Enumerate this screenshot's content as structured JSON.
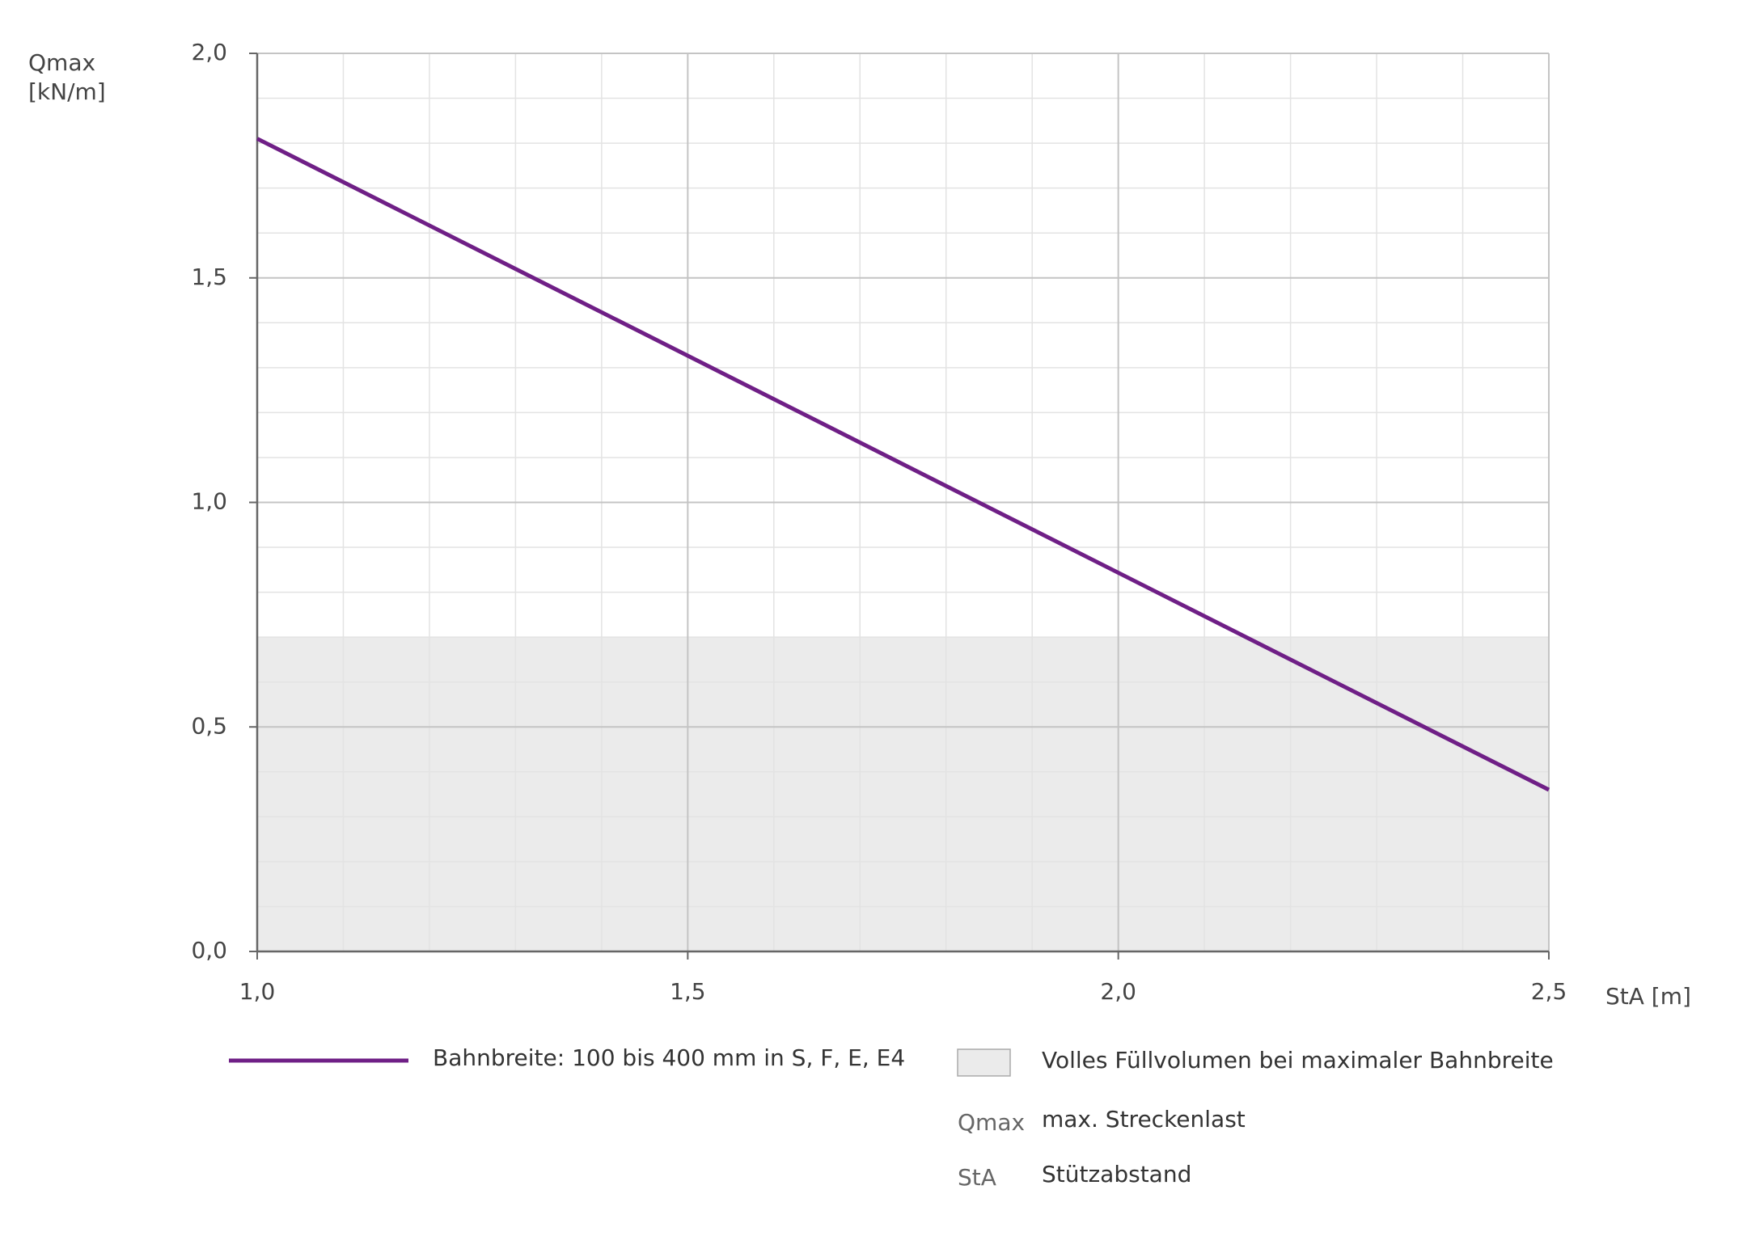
{
  "chart_data": {
    "type": "line",
    "ylabel": [
      "Qmax",
      "[kN/m]"
    ],
    "xlabel": "StA [m]",
    "x": [
      1.0,
      2.5
    ],
    "series": [
      {
        "name": "Bahnbreite: 100 bis 400 mm in S, F, E, E4",
        "color": "#6f1f86",
        "values": [
          1.81,
          0.36
        ]
      }
    ],
    "xlim": [
      1.0,
      2.5
    ],
    "xticks": [
      {
        "value": 1.0,
        "label": "1,0"
      },
      {
        "value": 1.5,
        "label": "1,5"
      },
      {
        "value": 2.0,
        "label": "2,0"
      },
      {
        "value": 2.5,
        "label": "2,5"
      }
    ],
    "ylim": [
      0,
      2.0
    ],
    "yticks": [
      {
        "value": 0,
        "label": "0,0"
      },
      {
        "value": 0.5,
        "label": "0,5"
      },
      {
        "value": 1.0,
        "label": "1,0"
      },
      {
        "value": 1.5,
        "label": "1,5"
      },
      {
        "value": 2.0,
        "label": "2,0"
      }
    ],
    "grid": true,
    "shaded_band": {
      "ylim": [
        0,
        0.7
      ],
      "color": "#ebebeb",
      "label": "Volles Füllvolumen bei maximaler Bahnbreite"
    },
    "glossary": [
      {
        "term": "Qmax",
        "text": "max. Streckenlast"
      },
      {
        "term": "StA",
        "text": "Stützabstand"
      }
    ]
  }
}
